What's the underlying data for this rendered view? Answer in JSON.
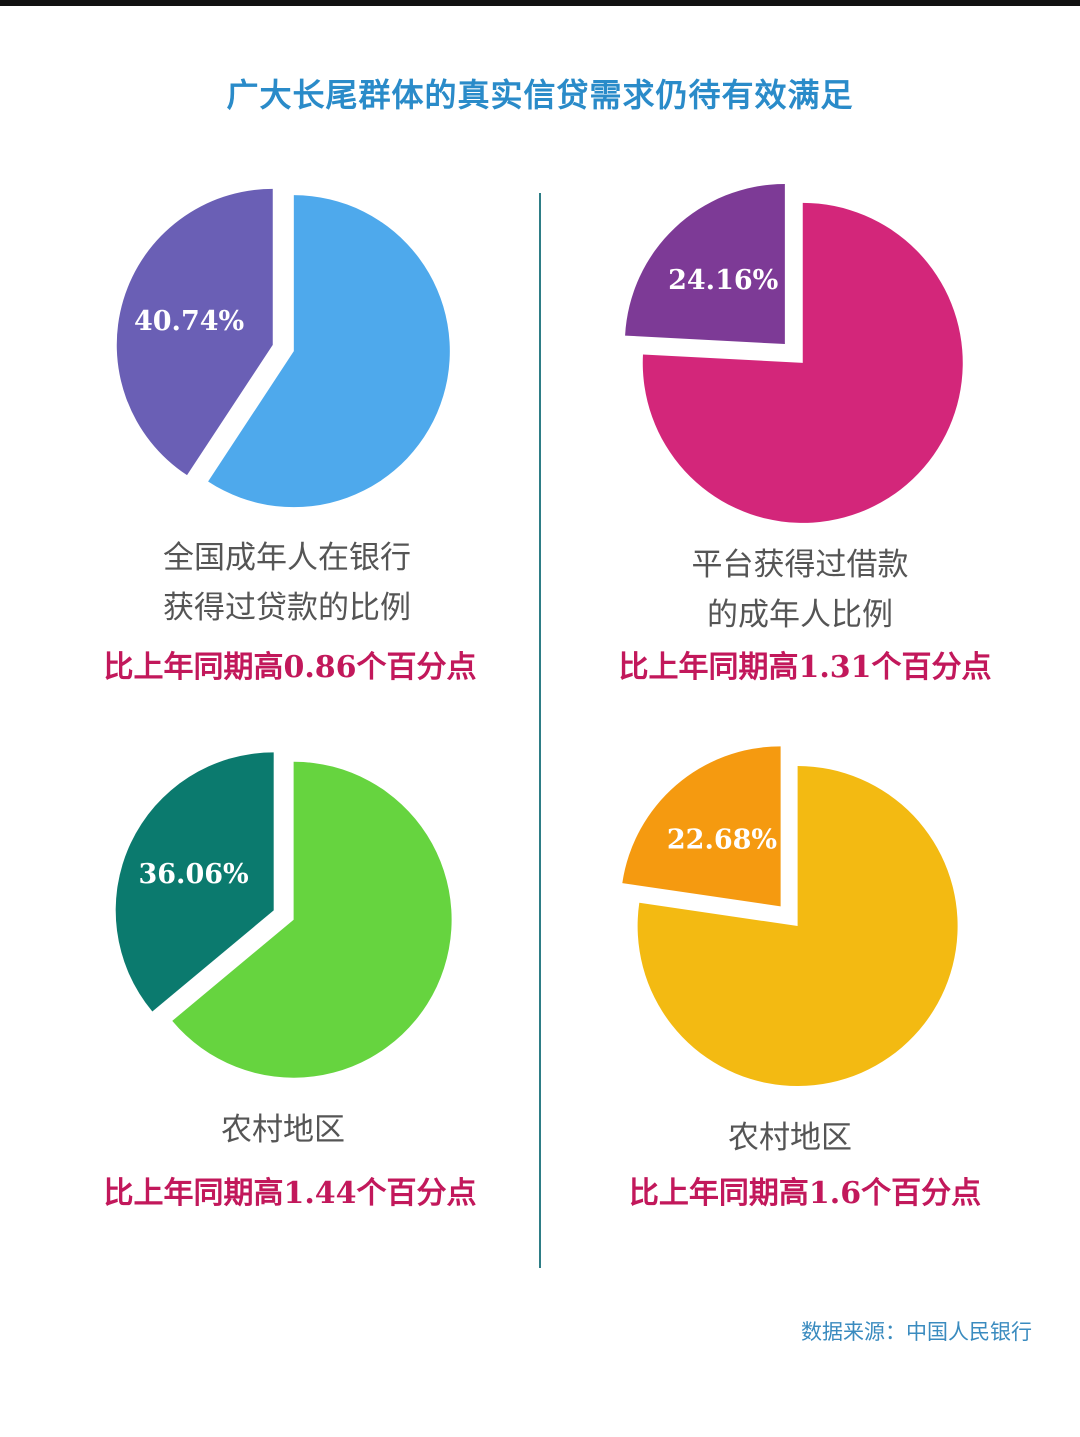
{
  "title": "广大长尾群体的真实信贷需求仍待有效满足",
  "source": "数据来源：中国人民银行",
  "chart_data": [
    {
      "type": "pie",
      "label": "40.74%",
      "slices": [
        {
          "value": 40.74,
          "color": "#6a5fb5"
        },
        {
          "value": 59.26,
          "color": "#4ea9ec"
        }
      ],
      "caption_lines": [
        "全国成年人在银行",
        "获得过贷款的比例"
      ],
      "highlight": "比上年同期高0.86个百分点"
    },
    {
      "type": "pie",
      "label": "24.16%",
      "slices": [
        {
          "value": 24.16,
          "color": "#7d3a96"
        },
        {
          "value": 75.84,
          "color": "#d3267a"
        }
      ],
      "caption_lines": [
        "平台获得过借款",
        "的成年人比例"
      ],
      "highlight": "比上年同期高1.31个百分点"
    },
    {
      "type": "pie",
      "label": "36.06%",
      "slices": [
        {
          "value": 36.06,
          "color": "#0b7a6e"
        },
        {
          "value": 63.94,
          "color": "#66d43f"
        }
      ],
      "caption_lines": [
        "农村地区"
      ],
      "highlight": "比上年同期高1.44个百分点"
    },
    {
      "type": "pie",
      "label": "22.68%",
      "slices": [
        {
          "value": 22.68,
          "color": "#f59a10"
        },
        {
          "value": 77.32,
          "color": "#f3ba12"
        }
      ],
      "caption_lines": [
        "农村地区"
      ],
      "highlight": "比上年同期高1.6个百分点"
    }
  ]
}
